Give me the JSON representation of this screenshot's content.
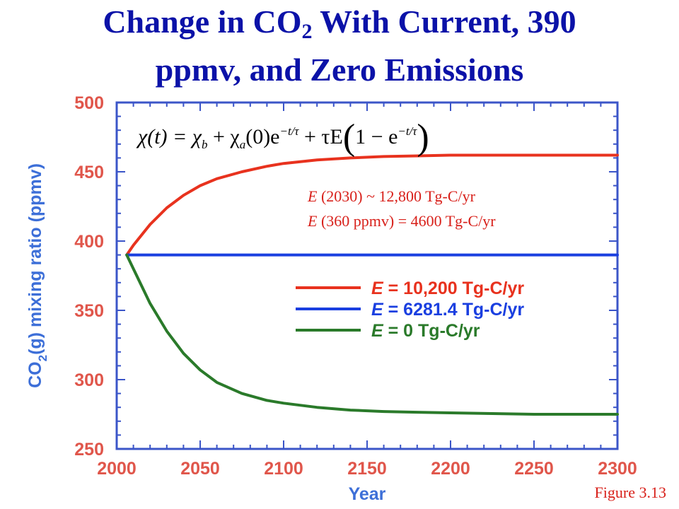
{
  "title": {
    "line1_pre": "Change in CO",
    "line1_sub": "2",
    "line1_post": " With Current, 390",
    "line2": "ppmv, and Zero Emissions"
  },
  "equation": {
    "lhs": "χ(t) = χ",
    "b": "b",
    "plus1": " + χ",
    "a": "a",
    "mid": "(0)e",
    "exp1": "−t/τ",
    "plus2": " + τE",
    "paren_open": "(",
    "one_minus": "1 − e",
    "exp2": "−t/τ",
    "paren_close": ")"
  },
  "annotations": [
    {
      "italic": "E",
      "text": " (2030) ~ 12,800 Tg-C/yr"
    },
    {
      "italic": "E",
      "text": " (360 ppmv) = 4600 Tg-C/yr"
    }
  ],
  "figure_label": "Figure 3.13",
  "chart_data": {
    "type": "line",
    "xlabel": "Year",
    "ylabel_pre": "CO",
    "ylabel_sub": "2",
    "ylabel_post": "(g) mixing ratio (ppmv)",
    "xlim": [
      2000,
      2300
    ],
    "ylim": [
      250,
      500
    ],
    "x_ticks": [
      2000,
      2050,
      2100,
      2150,
      2200,
      2250,
      2300
    ],
    "y_ticks": [
      250,
      300,
      350,
      400,
      450,
      500
    ],
    "grid": false,
    "legend_position": "center-right",
    "series": [
      {
        "name": "E = 10,200 Tg-C/yr",
        "legend_italic": "E",
        "legend_rest": " = 10,200 Tg-C/yr",
        "color": "#e8321e",
        "x": [
          2006,
          2010,
          2020,
          2030,
          2040,
          2050,
          2060,
          2075,
          2090,
          2100,
          2120,
          2140,
          2160,
          2180,
          2200,
          2225,
          2250,
          2275,
          2300
        ],
        "y": [
          390,
          397,
          412,
          424,
          433,
          440,
          445,
          450,
          454,
          456,
          458.5,
          460,
          461,
          461.5,
          462,
          462,
          462,
          462,
          462
        ]
      },
      {
        "name": "E = 6281.4 Tg-C/yr",
        "legend_italic": "E",
        "legend_rest": " = 6281.4 Tg-C/yr",
        "color": "#1a3fe0",
        "x": [
          2006,
          2300
        ],
        "y": [
          390,
          390
        ]
      },
      {
        "name": "E = 0 Tg-C/yr",
        "legend_italic": "E",
        "legend_rest": " = 0 Tg-C/yr",
        "color": "#2a7a2a",
        "x": [
          2006,
          2010,
          2020,
          2030,
          2040,
          2050,
          2060,
          2075,
          2090,
          2100,
          2120,
          2140,
          2160,
          2180,
          2200,
          2225,
          2250,
          2275,
          2300
        ],
        "y": [
          390,
          380,
          355,
          335,
          319,
          307,
          298,
          290,
          285,
          283,
          280,
          278,
          277,
          276.5,
          276,
          275.5,
          275,
          275,
          275
        ]
      }
    ]
  }
}
